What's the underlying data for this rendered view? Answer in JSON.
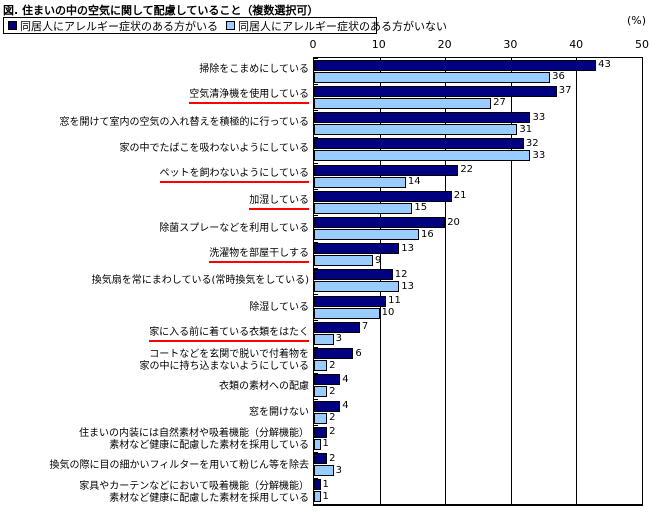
{
  "page": {
    "title": "図. 住まいの中の空気に関して配慮していること（複数選択可）",
    "unit_label": "(%)"
  },
  "legend": {
    "items": [
      {
        "label": "同居人にアレルギー症状のある方がいる",
        "color": "#000080"
      },
      {
        "label": "同居人にアレルギー症状のある方がいない",
        "color": "#99CCFF"
      }
    ]
  },
  "axis": {
    "ticks": [
      0,
      10,
      20,
      30,
      40,
      50
    ],
    "max": 50
  },
  "colors": {
    "bar_border": "#000000",
    "gridline": "#000000",
    "underline": "#ff0000"
  },
  "chart_data": {
    "type": "bar",
    "orientation": "horizontal",
    "title": "図. 住まいの中の空気に関して配慮していること（複数選択可）",
    "xlabel": "(%)",
    "xlim": [
      0,
      50
    ],
    "grid": true,
    "legend_position": "top",
    "categories": [
      "掃除をこまめにしている",
      "空気清浄機を使用している",
      "窓を開けて室内の空気の入れ替えを積極的に行っている",
      "家の中でたばこを吸わないようにしている",
      "ペットを飼わないようにしている",
      "加湿している",
      "除菌スプレーなどを利用している",
      "洗濯物を部屋干しする",
      "換気扇を常にまわしている(常時換気をしている)",
      "除湿している",
      "家に入る前に着ている衣類をはたく",
      "コートなどを玄関で脱いで付着物を\n家の中に持ち込まないようにしている",
      "衣類の素材への配慮",
      "窓を開けない",
      "住まいの内装には自然素材や吸着機能（分解機能）\n素材など健康に配慮した素材を採用している",
      "換気の際に目の細かいフィルターを用いて粉じん等を除去",
      "家具やカーテンなどにおいて吸着機能（分解機能）\n素材など健康に配慮した素材を採用している"
    ],
    "underlined_indices": [
      1,
      4,
      5,
      7,
      10
    ],
    "series": [
      {
        "name": "同居人にアレルギー症状のある方がいる",
        "color": "#000080",
        "values": [
          43,
          37,
          33,
          32,
          22,
          21,
          20,
          13,
          12,
          11,
          7,
          6,
          4,
          4,
          2,
          2,
          1
        ]
      },
      {
        "name": "同居人にアレルギー症状のある方がいない",
        "color": "#99CCFF",
        "values": [
          36,
          27,
          31,
          33,
          14,
          15,
          16,
          9,
          13,
          10,
          3,
          2,
          2,
          2,
          1,
          3,
          1
        ]
      }
    ]
  }
}
